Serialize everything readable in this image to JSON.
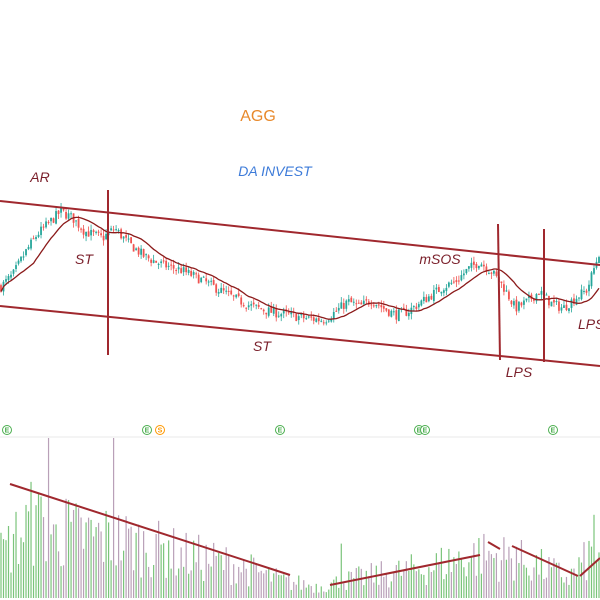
{
  "chart_data": {
    "type": "candlestick",
    "title": "AGG",
    "subtitle": "DA INVEST",
    "colors": {
      "up": "#26a69a",
      "down": "#ef5350",
      "annotation": "#a0282e",
      "moving_average": "#8b1a1a",
      "volume_up": "#7bc47b",
      "volume_down": "#b9a0b8",
      "title": "#e8892b",
      "subtitle": "#3d7bd9",
      "event_marker": "#4caf50",
      "event_marker_alt": "#ff9800"
    },
    "annotations": [
      {
        "label": "AR"
      },
      {
        "label": "ST"
      },
      {
        "label": "ST"
      },
      {
        "label": "mSOS"
      },
      {
        "label": "LPS"
      },
      {
        "label": "LPS"
      }
    ],
    "event_markers": [
      {
        "glyph": "E"
      },
      {
        "glyph": "E"
      },
      {
        "glyph": "S"
      },
      {
        "glyph": "E"
      },
      {
        "glyph": "E"
      },
      {
        "glyph": "E"
      },
      {
        "glyph": "E"
      },
      {
        "glyph": "E"
      }
    ],
    "price_path": [
      {
        "t": 0,
        "v": 35
      },
      {
        "t": 2,
        "v": 42
      },
      {
        "t": 4,
        "v": 55
      },
      {
        "t": 6,
        "v": 66
      },
      {
        "t": 8,
        "v": 73
      },
      {
        "t": 10,
        "v": 80
      },
      {
        "t": 12,
        "v": 76
      },
      {
        "t": 14,
        "v": 68
      },
      {
        "t": 17,
        "v": 64
      },
      {
        "t": 19,
        "v": 70
      },
      {
        "t": 21,
        "v": 62
      },
      {
        "t": 24,
        "v": 53
      },
      {
        "t": 27,
        "v": 48
      },
      {
        "t": 30,
        "v": 45
      },
      {
        "t": 33,
        "v": 40
      },
      {
        "t": 36,
        "v": 34
      },
      {
        "t": 39,
        "v": 28
      },
      {
        "t": 42,
        "v": 23
      },
      {
        "t": 45,
        "v": 20
      },
      {
        "t": 48,
        "v": 18
      },
      {
        "t": 51,
        "v": 16
      },
      {
        "t": 54,
        "v": 15
      },
      {
        "t": 56,
        "v": 20
      },
      {
        "t": 58,
        "v": 26
      },
      {
        "t": 60,
        "v": 23
      },
      {
        "t": 62,
        "v": 27
      },
      {
        "t": 64,
        "v": 22
      },
      {
        "t": 66,
        "v": 18
      },
      {
        "t": 68,
        "v": 20
      },
      {
        "t": 70,
        "v": 25
      },
      {
        "t": 72,
        "v": 30
      },
      {
        "t": 74,
        "v": 35
      },
      {
        "t": 76,
        "v": 38
      },
      {
        "t": 78,
        "v": 45
      },
      {
        "t": 80,
        "v": 50
      },
      {
        "t": 82,
        "v": 44
      },
      {
        "t": 84,
        "v": 35
      },
      {
        "t": 86,
        "v": 22
      },
      {
        "t": 88,
        "v": 26
      },
      {
        "t": 90,
        "v": 32
      },
      {
        "t": 92,
        "v": 25
      },
      {
        "t": 94,
        "v": 22
      },
      {
        "t": 96,
        "v": 28
      },
      {
        "t": 98,
        "v": 33
      },
      {
        "t": 100,
        "v": 55
      }
    ],
    "volume_path": [
      {
        "t": 0,
        "v": 30
      },
      {
        "t": 5,
        "v": 52
      },
      {
        "t": 10,
        "v": 45
      },
      {
        "t": 20,
        "v": 40
      },
      {
        "t": 30,
        "v": 30
      },
      {
        "t": 40,
        "v": 22
      },
      {
        "t": 47,
        "v": 12
      },
      {
        "t": 53,
        "v": 8
      },
      {
        "t": 60,
        "v": 14
      },
      {
        "t": 70,
        "v": 20
      },
      {
        "t": 80,
        "v": 30
      },
      {
        "t": 85,
        "v": 28
      },
      {
        "t": 90,
        "v": 22
      },
      {
        "t": 95,
        "v": 14
      },
      {
        "t": 100,
        "v": 35
      }
    ],
    "volume_spikes": [
      {
        "t": 8,
        "v": 100
      },
      {
        "t": 19,
        "v": 100
      },
      {
        "t": 11,
        "v": 62
      },
      {
        "t": 6,
        "v": 58
      },
      {
        "t": 9,
        "v": 46
      },
      {
        "t": 26,
        "v": 40
      },
      {
        "t": 28,
        "v": 36
      },
      {
        "t": 57,
        "v": 34
      },
      {
        "t": 84,
        "v": 38
      },
      {
        "t": 86,
        "v": 32
      },
      {
        "t": 99,
        "v": 52
      }
    ],
    "grid": false,
    "legend": "none"
  }
}
